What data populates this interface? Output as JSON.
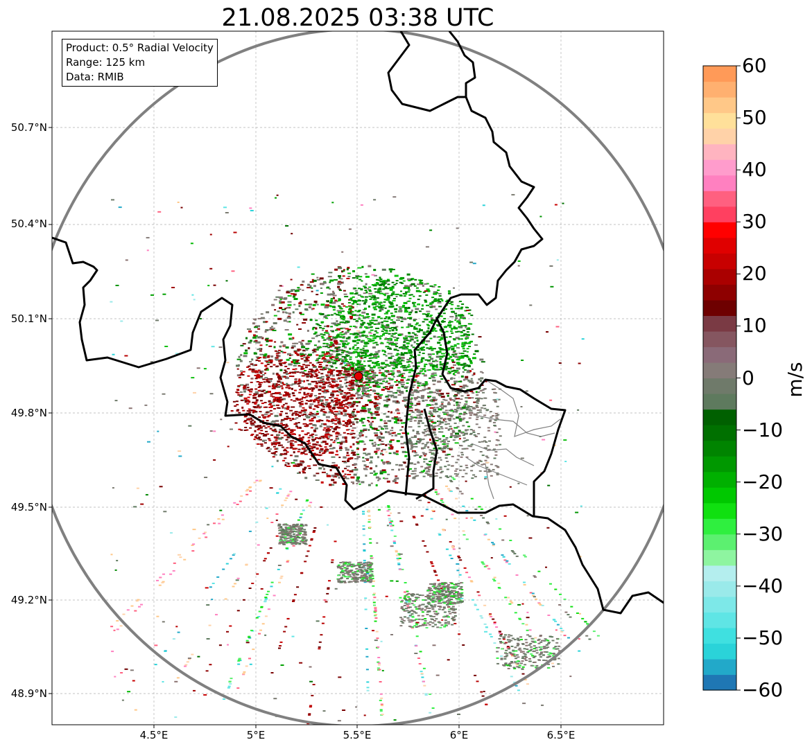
{
  "title": "21.08.2025 03:38 UTC",
  "info_box": {
    "product": "Product: 0.5° Radial Velocity",
    "range": "Range: 125 km",
    "data": "Data: RMIB"
  },
  "map": {
    "lat_ticks": [
      "50.7°N",
      "50.4°N",
      "50.1°N",
      "49.8°N",
      "49.5°N",
      "49.2°N",
      "48.9°N"
    ],
    "lon_ticks": [
      "4.5°E",
      "5°E",
      "5.5°E",
      "6°E",
      "6.5°E"
    ],
    "radar_site": {
      "lon": 5.505,
      "lat": 49.914
    },
    "range_ring_km": 125,
    "border_color": "#000000",
    "ring_color": "#808080"
  },
  "colorbar": {
    "unit": "m/s",
    "ticks": [
      "60",
      "50",
      "40",
      "30",
      "20",
      "10",
      "0",
      "−10",
      "−20",
      "−30",
      "−40",
      "−50",
      "−60"
    ],
    "range": [
      -60,
      60
    ],
    "colors_low_to_high": [
      "#1f77b4",
      "#22a9c9",
      "#2ad3d9",
      "#3fe0e0",
      "#5fe5e5",
      "#7de8e8",
      "#9aeaea",
      "#b4eeee",
      "#8ef5a0",
      "#5cf070",
      "#2fef3f",
      "#10e010",
      "#00c800",
      "#00b000",
      "#009800",
      "#008400",
      "#007000",
      "#006000",
      "#5e7a5e",
      "#6f7a6a",
      "#857b78",
      "#8a6a78",
      "#855660",
      "#7a3a44",
      "#6e0000",
      "#8e0000",
      "#aa0000",
      "#c80000",
      "#e00000",
      "#ff0000",
      "#ff4060",
      "#ff6080",
      "#ff80c0",
      "#ff9ccc",
      "#ffb4c0",
      "#ffd2a8",
      "#ffe09a",
      "#ffc888",
      "#ffb070",
      "#ff9a58"
    ]
  }
}
